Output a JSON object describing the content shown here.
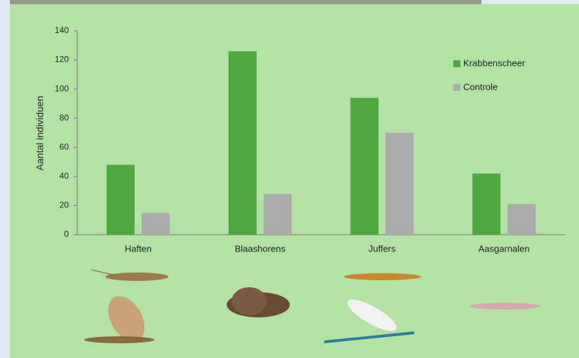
{
  "chart_data": {
    "type": "bar",
    "y_label": "Aantal individuen",
    "categories": [
      "Haften",
      "Blaashorens",
      "Juffers",
      "Aasgarnalen"
    ],
    "series": [
      {
        "name": "Krabbenscheer",
        "color": "#4fa83d",
        "values": [
          48,
          126,
          94,
          42
        ]
      },
      {
        "name": "Controle",
        "color": "#ababab",
        "values": [
          15,
          28,
          70,
          21
        ]
      }
    ],
    "ylim": [
      0,
      140
    ],
    "yticks": [
      0,
      20,
      40,
      60,
      80,
      100,
      120,
      140
    ],
    "grid": false,
    "legend": "top-right"
  }
}
